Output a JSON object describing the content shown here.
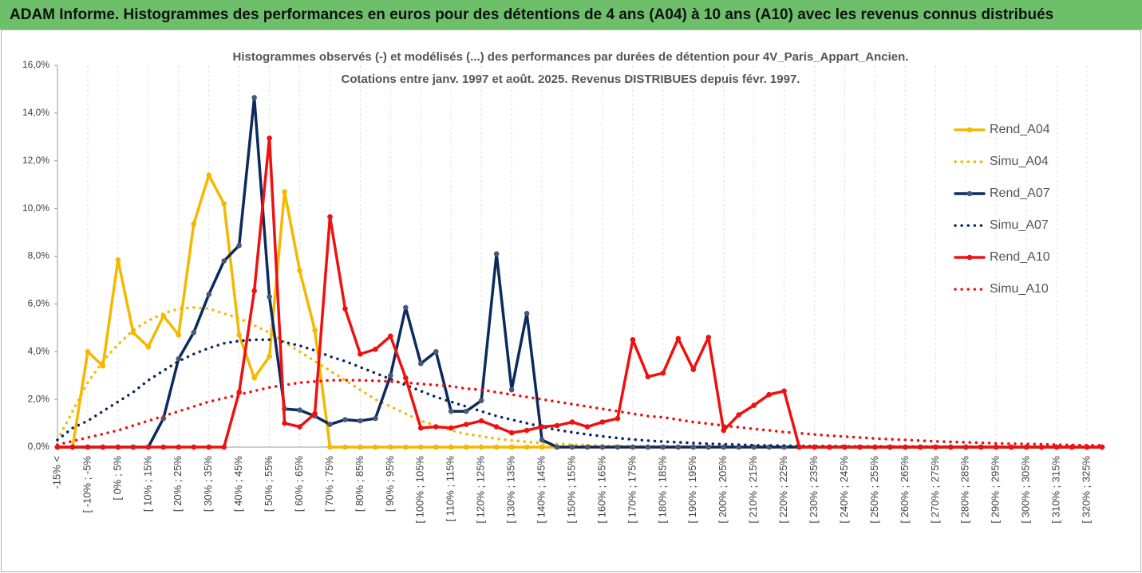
{
  "chart_data": {
    "type": "line",
    "title": "ADAM Informe. Histogrammes des performances en euros pour des détentions de 4 ans (A04) à 10 ans (A10) avec les revenus connus distribués",
    "subtitle": [
      "Histogrammes observés (-) et modélisés (...) des performances par durées de détention pour 4V_Paris_Appart_Ancien.",
      "Cotations entre janv. 1997 et août. 2025. Revenus DISTRIBUES depuis févr. 1997."
    ],
    "categories": [
      "-15% <",
      null,
      "[ -10% ; -5%",
      null,
      "[ 0% ; 5%",
      null,
      "[ 10% ; 15%",
      null,
      "[ 20% ; 25%",
      null,
      "[ 30% ; 35%",
      null,
      "[ 40% ; 45%",
      null,
      "[ 50% ; 55%",
      null,
      "[ 60% ; 65%",
      null,
      "[ 70% ; 75%",
      null,
      "[ 80% ; 85%",
      null,
      "[ 90% ; 95%",
      null,
      "[ 100% ; 105%",
      null,
      "[ 110% ; 115%",
      null,
      "[ 120% ; 125%",
      null,
      "[ 130% ; 135%",
      null,
      "[ 140% ; 145%",
      null,
      "[ 150% ; 155%",
      null,
      "[ 160% ; 165%",
      null,
      "[ 170% ; 175%",
      null,
      "[ 180% ; 185%",
      null,
      "[ 190% ; 195%",
      null,
      "[ 200% ; 205%",
      null,
      "[ 210% ; 215%",
      null,
      "[ 220% ; 225%",
      null,
      "[ 230% ; 235%",
      null,
      "[ 240% ; 245%",
      null,
      "[ 250% ; 255%",
      null,
      "[ 260% ; 265%",
      null,
      "[ 270% ; 275%",
      null,
      "[ 280% ; 285%",
      null,
      "[ 290% ; 295%",
      null,
      "[ 300% ; 305%",
      null,
      "[ 310% ; 315%",
      null,
      "[ 320% ; 325%",
      null
    ],
    "ylim": [
      0,
      16
    ],
    "yticks": [
      {
        "value": 0,
        "label": "0,0%"
      },
      {
        "value": 2,
        "label": "2,0%"
      },
      {
        "value": 4,
        "label": "4,0%"
      },
      {
        "value": 6,
        "label": "6,0%"
      },
      {
        "value": 8,
        "label": "8,0%"
      },
      {
        "value": 10,
        "label": "10,0%"
      },
      {
        "value": 12,
        "label": "12,0%"
      },
      {
        "value": 14,
        "label": "14,0%"
      },
      {
        "value": 16,
        "label": "16,0%"
      }
    ],
    "grid": true,
    "legend": "right",
    "series": [
      {
        "name": "Rend_A04",
        "color": "#f5b800",
        "style": "solid",
        "values": [
          0,
          0,
          4.0,
          3.4,
          7.85,
          4.8,
          4.2,
          5.5,
          4.7,
          9.35,
          11.4,
          10.2,
          4.7,
          2.9,
          3.8,
          10.7,
          7.4,
          4.9,
          0,
          0,
          0,
          0,
          0,
          0,
          0,
          0,
          0,
          0,
          0,
          0,
          0,
          0,
          0,
          0,
          0,
          0,
          0,
          0,
          0,
          0,
          0,
          0,
          0,
          0,
          0,
          0,
          0,
          0,
          0,
          0,
          0,
          0,
          0,
          0,
          0,
          0,
          0,
          0,
          0,
          0,
          0,
          0,
          0,
          0,
          0,
          0,
          0,
          0,
          0,
          0
        ]
      },
      {
        "name": "Simu_A04",
        "color": "#f5b800",
        "style": "dotted",
        "values": [
          0.3,
          1.5,
          2.7,
          3.6,
          4.3,
          4.9,
          5.3,
          5.6,
          5.8,
          5.85,
          5.8,
          5.6,
          5.4,
          5.1,
          4.8,
          4.4,
          4.0,
          3.6,
          3.2,
          2.8,
          2.4,
          2.0,
          1.7,
          1.4,
          1.1,
          0.9,
          0.7,
          0.55,
          0.45,
          0.35,
          0.28,
          0.22,
          0.17,
          0.13,
          0.1,
          0.08,
          0.06,
          0.05,
          0.04,
          0.03,
          0.03,
          0.02,
          0.02,
          0.02,
          0.01,
          0.01,
          0.01,
          0.01,
          0,
          0,
          0,
          0,
          0,
          0,
          0,
          0,
          0,
          0,
          0,
          0,
          0,
          0,
          0,
          0,
          0,
          0,
          0,
          0,
          0,
          0
        ]
      },
      {
        "name": "Rend_A07",
        "color": "#0d2a5e",
        "style": "solid",
        "values": [
          0,
          0,
          0,
          0,
          0,
          0,
          0,
          1.2,
          3.7,
          4.8,
          6.4,
          7.8,
          8.45,
          14.65,
          6.3,
          1.6,
          1.55,
          1.3,
          0.95,
          1.15,
          1.1,
          1.2,
          3.0,
          5.85,
          3.5,
          4.0,
          1.5,
          1.5,
          1.95,
          8.1,
          2.4,
          5.6,
          0.3,
          0,
          0,
          0,
          0,
          0,
          0,
          0,
          0,
          0,
          0,
          0,
          0,
          0,
          0,
          0,
          0,
          0,
          0,
          0,
          0,
          0,
          0,
          0,
          0,
          0,
          0,
          0,
          0,
          0,
          0,
          0,
          0,
          0,
          0,
          0,
          0,
          0
        ]
      },
      {
        "name": "Simu_A07",
        "color": "#0d2a5e",
        "style": "dotted",
        "values": [
          0.3,
          0.8,
          1.1,
          1.5,
          1.9,
          2.3,
          2.8,
          3.2,
          3.6,
          3.9,
          4.15,
          4.35,
          4.45,
          4.5,
          4.5,
          4.4,
          4.25,
          4.05,
          3.8,
          3.6,
          3.35,
          3.1,
          2.85,
          2.6,
          2.35,
          2.1,
          1.9,
          1.7,
          1.5,
          1.3,
          1.15,
          1.0,
          0.85,
          0.72,
          0.62,
          0.53,
          0.45,
          0.38,
          0.32,
          0.27,
          0.23,
          0.2,
          0.17,
          0.14,
          0.12,
          0.1,
          0.08,
          0.07,
          0.06,
          0.05,
          0.04,
          0.04,
          0.03,
          0.03,
          0.03,
          0.02,
          0.02,
          0.02,
          0.02,
          0.01,
          0.01,
          0.01,
          0.01,
          0.01,
          0.01,
          0.01,
          0,
          0,
          0,
          0
        ]
      },
      {
        "name": "Rend_A10",
        "color": "#ee1111",
        "style": "solid",
        "values": [
          0,
          0,
          0,
          0,
          0,
          0,
          0,
          0,
          0,
          0,
          0,
          0,
          2.3,
          6.55,
          12.95,
          1.0,
          0.85,
          1.4,
          9.65,
          5.8,
          3.9,
          4.1,
          4.65,
          2.9,
          0.8,
          0.85,
          0.8,
          0.95,
          1.1,
          0.85,
          0.6,
          0.7,
          0.85,
          0.9,
          1.05,
          0.85,
          1.05,
          1.2,
          4.5,
          2.95,
          3.1,
          4.55,
          3.25,
          4.6,
          0.7,
          1.35,
          1.75,
          2.2,
          2.35,
          0,
          0,
          0,
          0,
          0,
          0,
          0,
          0,
          0,
          0,
          0,
          0,
          0,
          0,
          0,
          0,
          0,
          0,
          0,
          0,
          0
        ]
      },
      {
        "name": "Simu_A10",
        "color": "#ee1111",
        "style": "dotted",
        "values": [
          0.1,
          0.25,
          0.4,
          0.55,
          0.7,
          0.9,
          1.1,
          1.3,
          1.5,
          1.7,
          1.9,
          2.05,
          2.2,
          2.35,
          2.5,
          2.6,
          2.7,
          2.75,
          2.8,
          2.8,
          2.8,
          2.78,
          2.75,
          2.7,
          2.65,
          2.6,
          2.55,
          2.45,
          2.4,
          2.3,
          2.2,
          2.1,
          2.0,
          1.9,
          1.8,
          1.7,
          1.6,
          1.5,
          1.4,
          1.3,
          1.25,
          1.15,
          1.05,
          0.98,
          0.9,
          0.83,
          0.76,
          0.7,
          0.63,
          0.58,
          0.53,
          0.48,
          0.44,
          0.4,
          0.36,
          0.33,
          0.3,
          0.27,
          0.24,
          0.22,
          0.2,
          0.18,
          0.16,
          0.14,
          0.13,
          0.12,
          0.1,
          0.09,
          0.08,
          0.07
        ]
      }
    ]
  }
}
